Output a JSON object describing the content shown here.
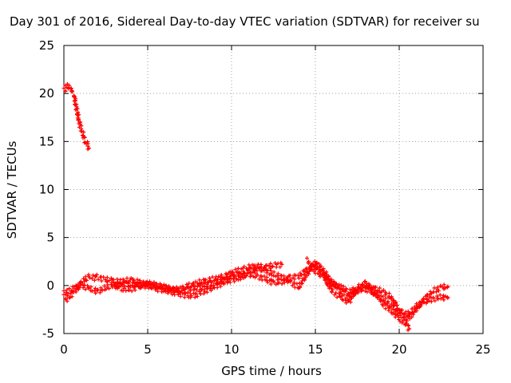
{
  "chart_data": {
    "type": "scatter",
    "title": "Day 301 of 2016, Sidereal Day-to-day VTEC variation (SDTVAR) for receiver su",
    "xlabel": "GPS time / hours",
    "ylabel": "SDTVAR / TECUs",
    "xlim": [
      0,
      25
    ],
    "ylim": [
      -5,
      25
    ],
    "xticks": [
      "0",
      "5",
      "10",
      "15",
      "20",
      "25"
    ],
    "yticks": [
      "-5",
      "0",
      "5",
      "10",
      "15",
      "20",
      "25"
    ],
    "grid": true,
    "marker": "+",
    "color": "#ff0000",
    "series": [
      {
        "name": "",
        "x": [
          0.0,
          0.1,
          0.2,
          0.3,
          0.4,
          0.5,
          0.6,
          0.7,
          0.8,
          0.9,
          1.0,
          1.1,
          1.2,
          1.3,
          1.4,
          1.5
        ],
        "y": [
          20.3,
          20.5,
          20.8,
          20.7,
          20.5,
          20.2,
          19.8,
          19.0,
          18.0,
          17.2,
          16.5,
          16.0,
          15.4,
          15.0,
          14.6,
          14.3
        ]
      },
      {
        "name": "",
        "x": [
          0.0,
          0.2,
          0.4,
          0.6,
          0.8,
          1.0,
          1.2,
          1.5,
          1.8,
          2.0,
          2.5,
          3.0,
          3.5,
          4.0,
          4.5,
          5.0,
          5.5,
          6.0,
          6.5,
          7.0,
          7.5,
          8.0,
          8.5,
          9.0,
          9.5,
          10.0,
          10.5,
          11.0,
          11.5,
          12.0,
          12.5,
          13.0,
          13.5,
          14.0,
          14.5,
          15.0,
          15.3,
          15.6,
          16.0,
          16.5,
          17.0,
          17.5,
          18.0,
          18.5,
          19.0,
          19.5,
          19.8,
          20.0,
          20.2,
          20.5,
          20.8,
          21.0,
          21.5,
          22.0,
          22.5,
          22.9
        ],
        "y": [
          -1.2,
          -1.4,
          -1.0,
          -0.6,
          -0.3,
          0.2,
          0.6,
          0.9,
          0.8,
          0.9,
          0.6,
          0.5,
          0.3,
          0.1,
          0.2,
          0.1,
          -0.1,
          -0.2,
          -0.4,
          -0.6,
          -0.4,
          -0.2,
          0.1,
          0.3,
          0.5,
          0.9,
          1.0,
          1.2,
          1.0,
          0.7,
          0.3,
          0.4,
          0.8,
          1.0,
          1.6,
          2.2,
          1.6,
          0.8,
          0.2,
          -0.2,
          -0.6,
          -0.4,
          0.0,
          -0.3,
          -0.6,
          -1.2,
          -2.0,
          -2.6,
          -2.8,
          -3.0,
          -2.6,
          -2.2,
          -1.7,
          -1.4,
          -1.2,
          -1.3
        ]
      },
      {
        "name": "",
        "x": [
          0.0,
          0.3,
          0.6,
          1.0,
          1.5,
          2.0,
          2.5,
          3.0,
          3.5,
          4.0,
          4.5,
          5.0,
          5.5,
          6.0,
          6.5,
          7.0,
          7.5,
          8.0,
          8.5,
          9.0,
          9.5,
          10.0,
          10.5,
          11.0,
          11.5,
          12.0,
          12.5,
          13.0,
          13.5,
          14.0,
          14.5,
          15.0,
          15.5,
          16.0,
          16.5,
          17.0,
          17.5,
          18.0,
          18.5,
          19.0,
          19.5,
          20.0,
          20.5,
          21.0,
          21.5,
          22.0,
          22.5,
          22.9
        ],
        "y": [
          -0.8,
          -0.6,
          -0.3,
          0.1,
          -0.3,
          -0.6,
          -0.2,
          0.1,
          -0.3,
          -0.4,
          -0.1,
          0.0,
          -0.3,
          -0.5,
          -0.7,
          -0.9,
          -1.1,
          -0.9,
          -0.5,
          -0.1,
          0.3,
          0.6,
          0.8,
          1.4,
          1.8,
          1.6,
          1.2,
          0.9,
          0.4,
          -0.2,
          1.2,
          2.4,
          1.5,
          0.3,
          -0.5,
          -1.0,
          -0.6,
          -0.3,
          -0.8,
          -1.4,
          -2.0,
          -2.8,
          -3.5,
          -2.5,
          -1.4,
          -0.6,
          -0.2,
          -0.1
        ]
      },
      {
        "name": "",
        "x": [
          3.0,
          3.5,
          4.0,
          4.5,
          5.0,
          5.5,
          6.0,
          6.5,
          7.0,
          7.5,
          8.0,
          8.5,
          9.0,
          9.5,
          10.0,
          10.5,
          11.0,
          11.5,
          12.0,
          12.5,
          13.0
        ],
        "y": [
          -0.2,
          0.4,
          0.6,
          0.3,
          0.2,
          0.1,
          -0.2,
          -0.5,
          -0.3,
          0.0,
          0.3,
          0.5,
          0.7,
          0.9,
          1.3,
          1.6,
          1.9,
          2.0,
          1.9,
          2.1,
          2.2
        ]
      },
      {
        "name": "",
        "x": [
          14.5,
          15.0,
          15.5,
          16.0,
          16.5,
          17.0,
          17.5,
          18.0,
          18.5,
          19.0,
          19.5,
          20.0,
          20.5,
          20.6
        ],
        "y": [
          2.6,
          1.5,
          0.9,
          -0.6,
          -1.2,
          -1.7,
          -0.2,
          0.2,
          -0.6,
          -1.8,
          -2.6,
          -3.4,
          -4.2,
          -4.5
        ]
      }
    ]
  }
}
